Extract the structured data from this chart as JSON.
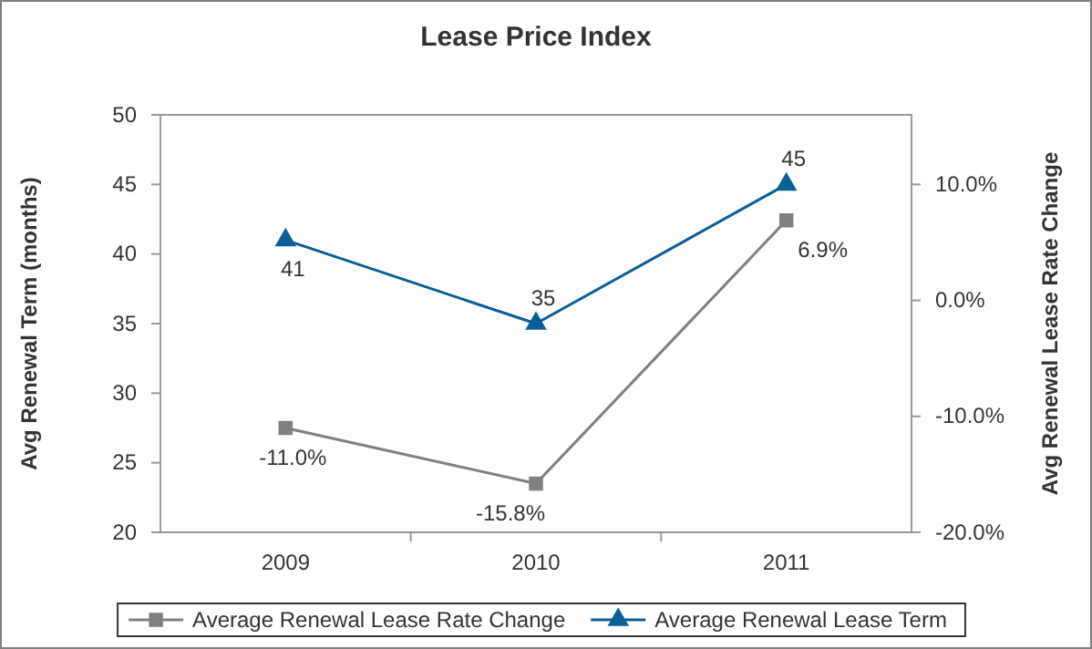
{
  "chart_data": {
    "type": "line",
    "title": "Lease Price Index",
    "ylabel": "Avg Renewal Term (months)",
    "y2label": "Avg Renewal Lease Rate Change",
    "categories": [
      "2009",
      "2010",
      "2011"
    ],
    "series": [
      {
        "name": "Average Renewal Lease Rate Change",
        "color": "#808080",
        "values": [
          -11.0,
          -15.8,
          6.9
        ],
        "axis": "y2",
        "marker": "square",
        "value_labels": [
          "-11.0%",
          "-15.8%",
          "6.9%"
        ]
      },
      {
        "name": "Average Renewal Lease Term",
        "color": "#0b5e96",
        "values": [
          41,
          35,
          45
        ],
        "marker": "triangle",
        "value_labels": [
          "41",
          "35",
          "45"
        ]
      }
    ],
    "ylim": [
      20,
      50
    ],
    "yticks": [
      20,
      25,
      30,
      35,
      40,
      45,
      50
    ],
    "y2lim": [
      -20,
      16
    ],
    "y2ticks": [
      {
        "value": -20,
        "label": "-20.0%"
      },
      {
        "value": -10,
        "label": "-10.0%"
      },
      {
        "value": 0,
        "label": "0.0%"
      },
      {
        "value": 10,
        "label": "10.0%"
      }
    ],
    "legend": "bottom",
    "grid": false
  }
}
